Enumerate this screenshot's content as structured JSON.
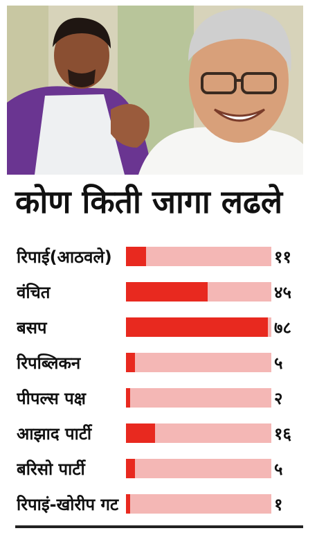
{
  "title": "कोण किती जागा लढले",
  "chart_data": {
    "type": "bar",
    "orientation": "horizontal",
    "categories": [
      "रिपाई(आठवले)",
      "वंचित",
      "बसप",
      "रिपब्लिकन",
      "पीपल्स पक्ष",
      "आझाद पार्टी",
      "बरिसो पार्टी",
      "रिपाइं-खोरीप गट"
    ],
    "values": [
      11,
      45,
      78,
      5,
      2,
      16,
      5,
      1
    ],
    "value_labels": [
      "११",
      "४५",
      "७८",
      "५",
      "२",
      "१६",
      "५",
      "१"
    ],
    "xlim": [
      0,
      80
    ],
    "grid": false,
    "legend": "none"
  },
  "colors": {
    "bar_fill": "#e8291f",
    "bar_track": "#f4b7b5"
  }
}
